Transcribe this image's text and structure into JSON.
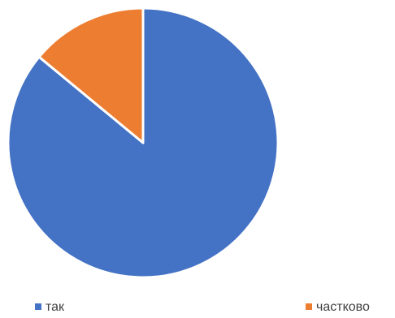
{
  "chart_data": {
    "type": "pie",
    "title": "",
    "categories": [
      "так",
      "частково"
    ],
    "values": [
      86,
      14
    ],
    "colors": [
      "#4472C4",
      "#ED7D31"
    ],
    "legend_position": "bottom",
    "start_angle_deg": 0,
    "direction": "clockwise"
  }
}
